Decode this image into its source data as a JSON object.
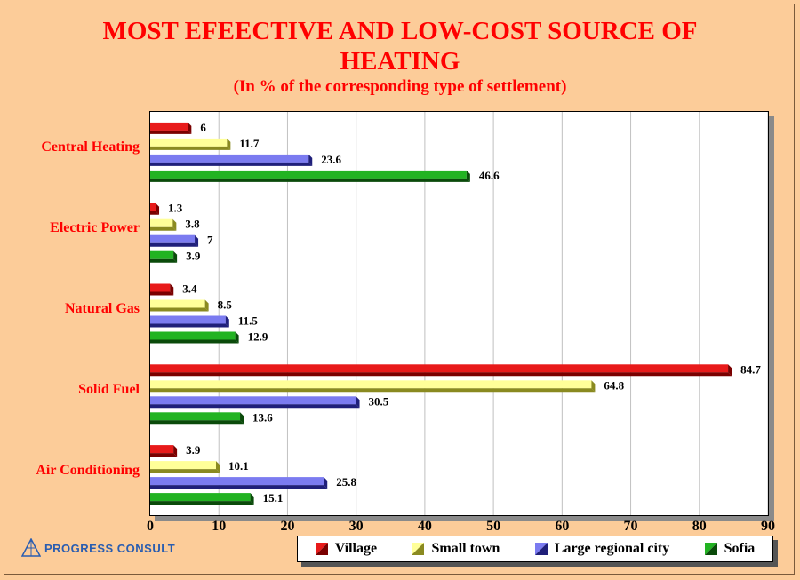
{
  "title_line1": "MOST EFEECTIVE AND LOW-COST SOURCE OF",
  "title_line2": "HEATING",
  "subtitle": "(In % of the corresponding type of settlement)",
  "brand": "PROGRESS CONSULT",
  "colors": {
    "background": "#fccc99",
    "title": "#ff0000",
    "gridline": "#c0c0c0"
  },
  "chart_data": {
    "type": "bar",
    "orientation": "horizontal",
    "title": "MOST EFEECTIVE AND LOW-COST SOURCE OF HEATING",
    "subtitle": "(In % of the corresponding type of settlement)",
    "categories": [
      "Central Heating",
      "Electric Power",
      "Natural Gas",
      "Solid Fuel",
      "Air Conditioning"
    ],
    "series": [
      {
        "name": "Village",
        "color": "#e81a1a",
        "dark": "#7a0000",
        "values": [
          6,
          1.3,
          3.4,
          84.7,
          3.9
        ]
      },
      {
        "name": "Small town",
        "color": "#ffff99",
        "dark": "#8a8a20",
        "values": [
          11.7,
          3.8,
          8.5,
          64.8,
          10.1
        ]
      },
      {
        "name": "Large regional city",
        "color": "#7b7bf0",
        "dark": "#1f1f7a",
        "values": [
          23.6,
          7,
          11.5,
          30.5,
          25.8
        ]
      },
      {
        "name": "Sofia",
        "color": "#22b322",
        "dark": "#0a4a0a",
        "values": [
          46.6,
          3.9,
          12.9,
          13.6,
          15.1
        ]
      }
    ],
    "xlim": [
      0,
      90
    ],
    "xticks": [
      0,
      10,
      20,
      30,
      40,
      50,
      60,
      70,
      80,
      90
    ],
    "grid": "vertical",
    "legend": "bottom"
  }
}
